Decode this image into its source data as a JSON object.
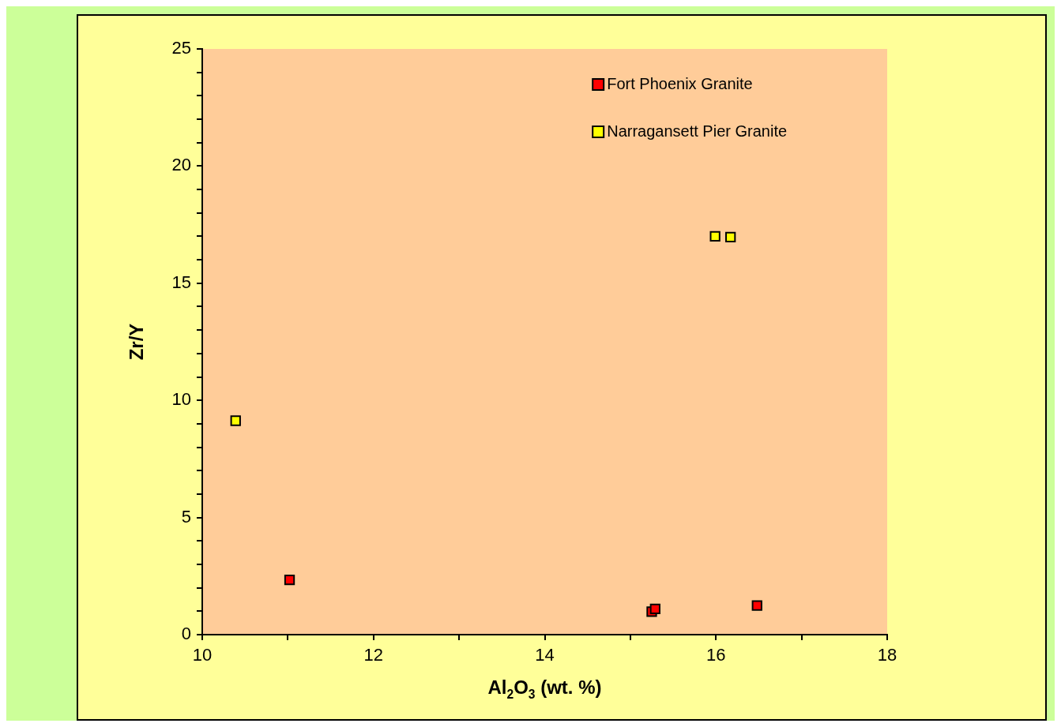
{
  "chart_data": {
    "type": "scatter",
    "xlabel": "Al$_{2}$O$_{3}$ (wt. %)",
    "ylabel": "Zr/Y",
    "xlim": [
      10,
      18
    ],
    "ylim": [
      0,
      25
    ],
    "xticks": [
      10,
      {
        "value": 11,
        "label": null
      },
      12,
      {
        "value": 13,
        "label": null
      },
      14,
      {
        "value": 15,
        "label": null
      },
      16,
      {
        "value": 17,
        "label": null
      },
      18
    ],
    "yticks": [
      0,
      {
        "value": 1,
        "label": null
      },
      {
        "value": 2,
        "label": null
      },
      {
        "value": 3,
        "label": null
      },
      {
        "value": 4,
        "label": null
      },
      5,
      {
        "value": 6,
        "label": null
      },
      {
        "value": 7,
        "label": null
      },
      {
        "value": 8,
        "label": null
      },
      {
        "value": 9,
        "label": null
      },
      10,
      {
        "value": 11,
        "label": null
      },
      {
        "value": 12,
        "label": null
      },
      {
        "value": 13,
        "label": null
      },
      {
        "value": 14,
        "label": null
      },
      15,
      {
        "value": 16,
        "label": null
      },
      {
        "value": 17,
        "label": null
      },
      {
        "value": 18,
        "label": null
      },
      {
        "value": 19,
        "label": null
      },
      20,
      {
        "value": 21,
        "label": null
      },
      {
        "value": 22,
        "label": null
      },
      {
        "value": 23,
        "label": null
      },
      {
        "value": 24,
        "label": null
      },
      25
    ],
    "grid": false,
    "legend": "top right",
    "marker": "square",
    "series": [
      {
        "name": "Fort Phoenix Granite",
        "color": "#ff0000",
        "x": [
          11.02,
          15.25,
          15.29,
          16.48
        ],
        "values": [
          2.34,
          0.98,
          1.1,
          1.24
        ]
      },
      {
        "name": "Narragansett Pier Granite",
        "color": "#ffff00",
        "x": [
          10.39,
          15.99,
          16.17
        ],
        "values": [
          9.13,
          17.0,
          16.97
        ]
      }
    ]
  }
}
